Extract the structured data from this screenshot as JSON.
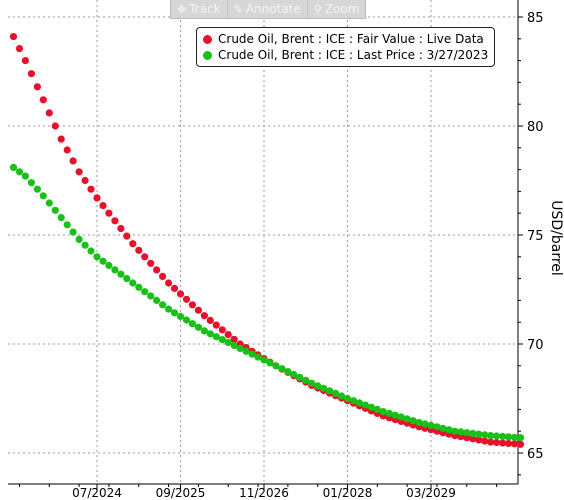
{
  "toolbar": {
    "track_label": "Track",
    "annotate_label": "Annotate",
    "zoom_label": "Zoom"
  },
  "chart_data": {
    "type": "scatter",
    "title": "",
    "xlabel": "",
    "ylabel": "USD/barrel",
    "x_tick_labels": [
      "07/2024",
      "09/2025",
      "11/2026",
      "01/2028",
      "03/2029"
    ],
    "y_ticks": [
      65,
      70,
      75,
      80,
      85
    ],
    "ylim": [
      64,
      85.5
    ],
    "grid": true,
    "legend_position": "top-right",
    "x_unit": "monthly contracts",
    "series": [
      {
        "name": "Crude Oil, Brent : ICE : Fair Value : Live Data",
        "color": "#e8102a",
        "anchors": [
          [
            "05/2023",
            84.1
          ],
          [
            "07/2023",
            83.0
          ],
          [
            "10/2023",
            81.2
          ],
          [
            "01/2024",
            79.4
          ],
          [
            "04/2024",
            77.9
          ],
          [
            "07/2024",
            76.7
          ],
          [
            "01/2025",
            74.6
          ],
          [
            "07/2025",
            72.8
          ],
          [
            "01/2026",
            71.3
          ],
          [
            "07/2026",
            70.0
          ],
          [
            "01/2027",
            69.0
          ],
          [
            "07/2027",
            68.1
          ],
          [
            "01/2028",
            67.4
          ],
          [
            "07/2028",
            66.7
          ],
          [
            "01/2029",
            66.2
          ],
          [
            "07/2029",
            65.8
          ],
          [
            "01/2030",
            65.5
          ],
          [
            "06/2030",
            65.4
          ]
        ]
      },
      {
        "name": "Crude Oil, Brent : ICE : Last Price : 3/27/2023",
        "color": "#18c018",
        "anchors": [
          [
            "05/2023",
            78.1
          ],
          [
            "07/2023",
            77.7
          ],
          [
            "10/2023",
            76.8
          ],
          [
            "01/2024",
            75.8
          ],
          [
            "04/2024",
            74.8
          ],
          [
            "07/2024",
            74.0
          ],
          [
            "01/2025",
            72.8
          ],
          [
            "07/2025",
            71.6
          ],
          [
            "01/2026",
            70.6
          ],
          [
            "07/2026",
            69.8
          ],
          [
            "01/2027",
            69.0
          ],
          [
            "07/2027",
            68.2
          ],
          [
            "01/2028",
            67.5
          ],
          [
            "07/2028",
            66.9
          ],
          [
            "01/2029",
            66.4
          ],
          [
            "07/2029",
            66.0
          ],
          [
            "01/2030",
            65.8
          ],
          [
            "06/2030",
            65.7
          ]
        ]
      }
    ]
  }
}
